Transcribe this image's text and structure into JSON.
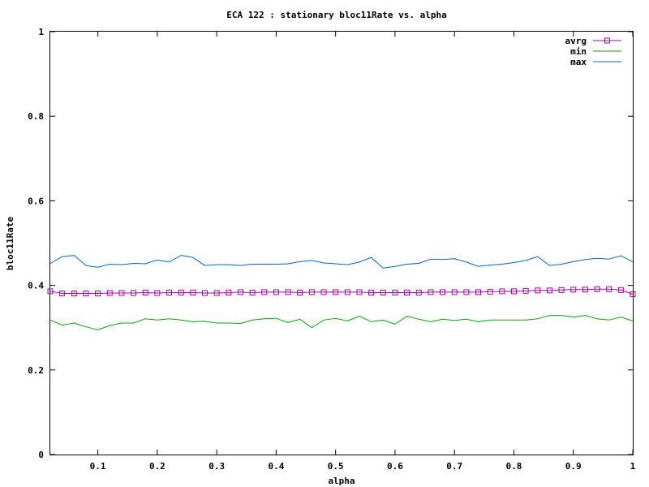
{
  "chart_data": {
    "type": "line",
    "title": "ECA 122 : stationary bloc11Rate vs. alpha",
    "xlabel": "alpha",
    "ylabel": "bloc11Rate",
    "xlim": [
      0.02,
      1.0
    ],
    "ylim": [
      0,
      1
    ],
    "xticks": [
      "0.1",
      "0.2",
      "0.3",
      "0.4",
      "0.5",
      "0.6",
      "0.7",
      "0.8",
      "0.9",
      "1"
    ],
    "xtick_values": [
      0.1,
      0.2,
      0.3,
      0.4,
      0.5,
      0.6,
      0.7,
      0.8,
      0.9,
      1.0
    ],
    "yticks": [
      "0",
      "0.2",
      "0.4",
      "0.6",
      "0.8",
      "1"
    ],
    "ytick_values": [
      0,
      0.2,
      0.4,
      0.6,
      0.8,
      1.0
    ],
    "grid": false,
    "legend_position": "top-right",
    "x": [
      0.02,
      0.04,
      0.06,
      0.08,
      0.1,
      0.12,
      0.14,
      0.16,
      0.18,
      0.2,
      0.22,
      0.24,
      0.26,
      0.28,
      0.3,
      0.32,
      0.34,
      0.36,
      0.38,
      0.4,
      0.42,
      0.44,
      0.46,
      0.48,
      0.5,
      0.52,
      0.54,
      0.56,
      0.58,
      0.6,
      0.62,
      0.64,
      0.66,
      0.68,
      0.7,
      0.72,
      0.74,
      0.76,
      0.78,
      0.8,
      0.82,
      0.84,
      0.86,
      0.88,
      0.9,
      0.92,
      0.94,
      0.96,
      0.98,
      1.0
    ],
    "series": [
      {
        "name": "avrg",
        "color": "#aa00aa",
        "marker": "square",
        "values": [
          0.386,
          0.381,
          0.381,
          0.381,
          0.381,
          0.382,
          0.382,
          0.382,
          0.383,
          0.382,
          0.383,
          0.383,
          0.383,
          0.382,
          0.382,
          0.383,
          0.384,
          0.383,
          0.384,
          0.384,
          0.384,
          0.383,
          0.384,
          0.384,
          0.384,
          0.384,
          0.384,
          0.383,
          0.383,
          0.383,
          0.383,
          0.383,
          0.384,
          0.384,
          0.384,
          0.384,
          0.384,
          0.385,
          0.386,
          0.386,
          0.387,
          0.388,
          0.388,
          0.389,
          0.39,
          0.39,
          0.391,
          0.391,
          0.389,
          0.379
        ]
      },
      {
        "name": "min",
        "color": "#00aa00",
        "values": [
          0.318,
          0.306,
          0.311,
          0.302,
          0.295,
          0.305,
          0.311,
          0.311,
          0.321,
          0.318,
          0.321,
          0.318,
          0.314,
          0.315,
          0.311,
          0.311,
          0.31,
          0.318,
          0.321,
          0.322,
          0.312,
          0.32,
          0.3,
          0.318,
          0.322,
          0.316,
          0.327,
          0.314,
          0.318,
          0.308,
          0.327,
          0.32,
          0.314,
          0.32,
          0.317,
          0.32,
          0.314,
          0.318,
          0.318,
          0.318,
          0.318,
          0.321,
          0.329,
          0.329,
          0.325,
          0.329,
          0.321,
          0.318,
          0.325,
          0.316
        ]
      },
      {
        "name": "max",
        "color": "#0066cc",
        "values": [
          0.452,
          0.468,
          0.471,
          0.447,
          0.443,
          0.45,
          0.449,
          0.452,
          0.451,
          0.46,
          0.455,
          0.471,
          0.466,
          0.447,
          0.449,
          0.449,
          0.447,
          0.45,
          0.45,
          0.45,
          0.451,
          0.456,
          0.459,
          0.453,
          0.451,
          0.449,
          0.455,
          0.466,
          0.441,
          0.445,
          0.45,
          0.452,
          0.462,
          0.461,
          0.463,
          0.455,
          0.445,
          0.448,
          0.45,
          0.454,
          0.459,
          0.468,
          0.447,
          0.45,
          0.456,
          0.461,
          0.464,
          0.462,
          0.47,
          0.456
        ]
      }
    ]
  }
}
